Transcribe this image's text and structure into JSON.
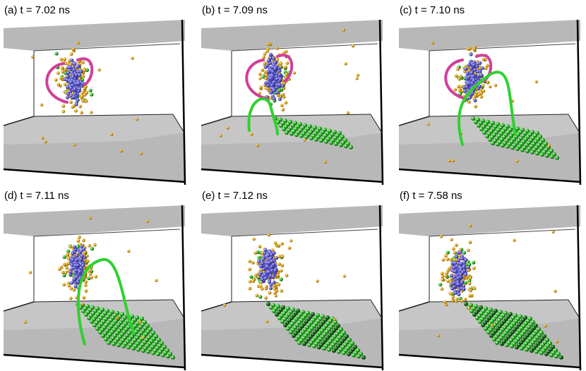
{
  "panels": [
    {
      "label": "(a) t = 7.02 ns"
    },
    {
      "label": "(b) t = 7.09 ns"
    },
    {
      "label": "(c) t = 7.10 ns"
    },
    {
      "label": "(d) t = 7.11 ns"
    },
    {
      "label": "(e) t = 7.12 ns"
    },
    {
      "label": "(f) t = 7.58 ns"
    }
  ]
}
